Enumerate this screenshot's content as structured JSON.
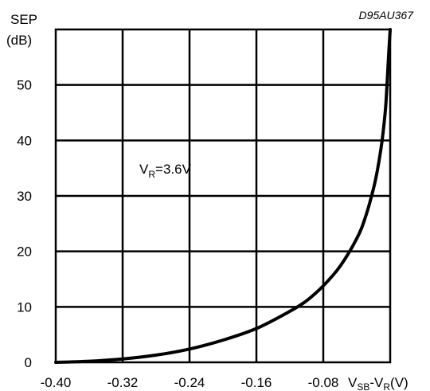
{
  "chart_data": {
    "type": "line",
    "code": "D95AU367",
    "ylabel_line1": "SEP",
    "ylabel_line2": "(dB)",
    "xlabel_main": "V",
    "xlabel_sub1": "SB",
    "xlabel_mid": "-V",
    "xlabel_sub2": "R",
    "xlabel_unit": "(V)",
    "xlim": [
      -0.4,
      0.0
    ],
    "ylim": [
      0,
      60
    ],
    "x_ticks": [
      "-0.40",
      "-0.32",
      "-0.24",
      "-0.16",
      "-0.08"
    ],
    "x_tick_values": [
      -0.4,
      -0.32,
      -0.24,
      -0.16,
      -0.08
    ],
    "y_ticks": [
      "0",
      "10",
      "20",
      "30",
      "40",
      "50"
    ],
    "y_tick_values": [
      0,
      10,
      20,
      30,
      40,
      50
    ],
    "grid": true,
    "annotation": {
      "main": "V",
      "sub": "R",
      "rest": "=3.6V"
    },
    "series": [
      {
        "x": [
          -0.4,
          -0.36,
          -0.32,
          -0.28,
          -0.24,
          -0.2,
          -0.16,
          -0.12,
          -0.1,
          -0.08,
          -0.06,
          -0.04,
          -0.03,
          -0.02,
          -0.015,
          -0.01,
          -0.006,
          -0.004,
          -0.002,
          0.0
        ],
        "y": [
          0,
          0.2,
          0.6,
          1.3,
          2.4,
          4.0,
          6.1,
          9.2,
          11.1,
          13.8,
          17.3,
          22.3,
          26.0,
          31.3,
          34.9,
          39.6,
          45.0,
          49.5,
          55.0,
          60.0
        ]
      }
    ],
    "line_color": "#000000"
  }
}
